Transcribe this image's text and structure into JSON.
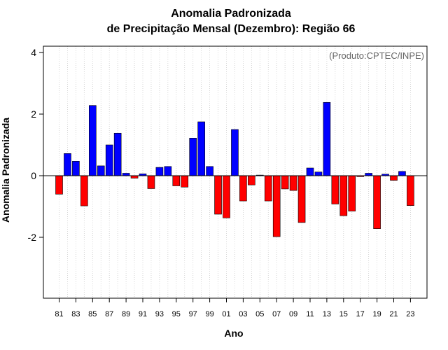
{
  "chart_data": {
    "type": "bar",
    "title": "Anomalia Padronizada",
    "subtitle": "de Precipitação Mensal (Dezembro): Região 66",
    "xlabel": "Ano",
    "ylabel": "Anomalia Padronizada",
    "annotation": "(Produto:CPTEC/INPE)",
    "ylim": [
      -4,
      4.4
    ],
    "yticks": [
      -2,
      0,
      2,
      4
    ],
    "xticks": [
      "81",
      "83",
      "85",
      "87",
      "89",
      "91",
      "93",
      "95",
      "97",
      "99",
      "01",
      "03",
      "05",
      "07",
      "09",
      "11",
      "13",
      "15",
      "17",
      "19",
      "21",
      "23"
    ],
    "categories": [
      "81",
      "82",
      "83",
      "84",
      "85",
      "86",
      "87",
      "88",
      "89",
      "90",
      "91",
      "92",
      "93",
      "94",
      "95",
      "96",
      "97",
      "98",
      "99",
      "00",
      "01",
      "02",
      "03",
      "04",
      "05",
      "06",
      "07",
      "08",
      "09",
      "10",
      "11",
      "12",
      "13",
      "14",
      "15",
      "16",
      "17",
      "18",
      "19",
      "20",
      "21",
      "22",
      "23"
    ],
    "values": [
      -0.6,
      0.72,
      0.47,
      -0.98,
      2.28,
      0.32,
      1.0,
      1.38,
      0.08,
      -0.08,
      0.06,
      -0.42,
      0.27,
      0.3,
      -0.33,
      -0.37,
      1.22,
      1.75,
      0.3,
      -1.25,
      -1.37,
      1.5,
      -0.82,
      -0.3,
      0.02,
      -0.82,
      -1.98,
      -0.43,
      -0.48,
      -1.52,
      0.25,
      0.12,
      2.38,
      -0.92,
      -1.3,
      -1.15,
      -0.03,
      0.08,
      -1.72,
      0.05,
      -0.15,
      0.14,
      -0.97
    ],
    "grid": "vertical dotted",
    "colors": {
      "positive": "#0000ff",
      "negative": "#ff0000",
      "zero_line": "#000000",
      "grid": "#cccccc"
    }
  }
}
